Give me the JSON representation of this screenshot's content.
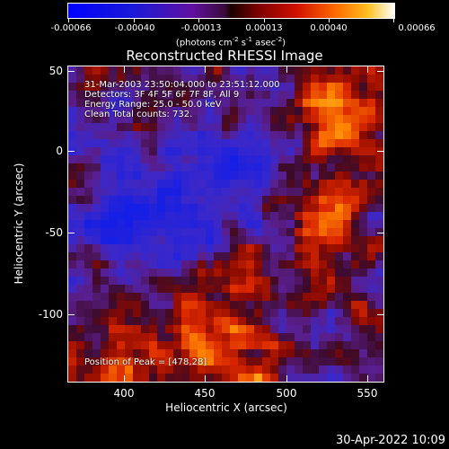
{
  "colorbar": {
    "ticks": [
      "-0.00066",
      "-0.00040",
      "-0.00013",
      "0.00013",
      "0.00040",
      "0.00066"
    ],
    "unit_pre": "(photons cm",
    "unit_exp1": "-2",
    "unit_mid": " s",
    "unit_exp2": "-1",
    "unit_mid2": " asec",
    "unit_exp3": "-2",
    "unit_post": ")"
  },
  "annotations": {
    "line1": "31-Mar-2003 23:50:04.000 to 23:51:12.000",
    "line2": "Detectors: 3F 4F 5F 6F 7F 8F, All 9",
    "line3": "Energy Range: 25.0 - 50.0 keV",
    "line4": "Clean     Total counts: 732.",
    "peak": "Position of Peak = [478,28]"
  },
  "footer": {
    "timestamp": "30-Apr-2022 10:09"
  },
  "chart_data": {
    "type": "heatmap",
    "title": "Reconstructed RHESSI Image",
    "xlabel": "Heliocentric X (arcsec)",
    "ylabel": "Heliocentric Y (arcsec)",
    "xlim": [
      365,
      557
    ],
    "ylim": [
      -140,
      52
    ],
    "xticks": [
      400,
      450,
      500,
      550
    ],
    "yticks": [
      50,
      0,
      -50,
      -100
    ],
    "value_range": [
      -0.00066,
      0.00066
    ],
    "peak_position": [
      478,
      28
    ],
    "grid": false,
    "colorbar_position": "top"
  }
}
